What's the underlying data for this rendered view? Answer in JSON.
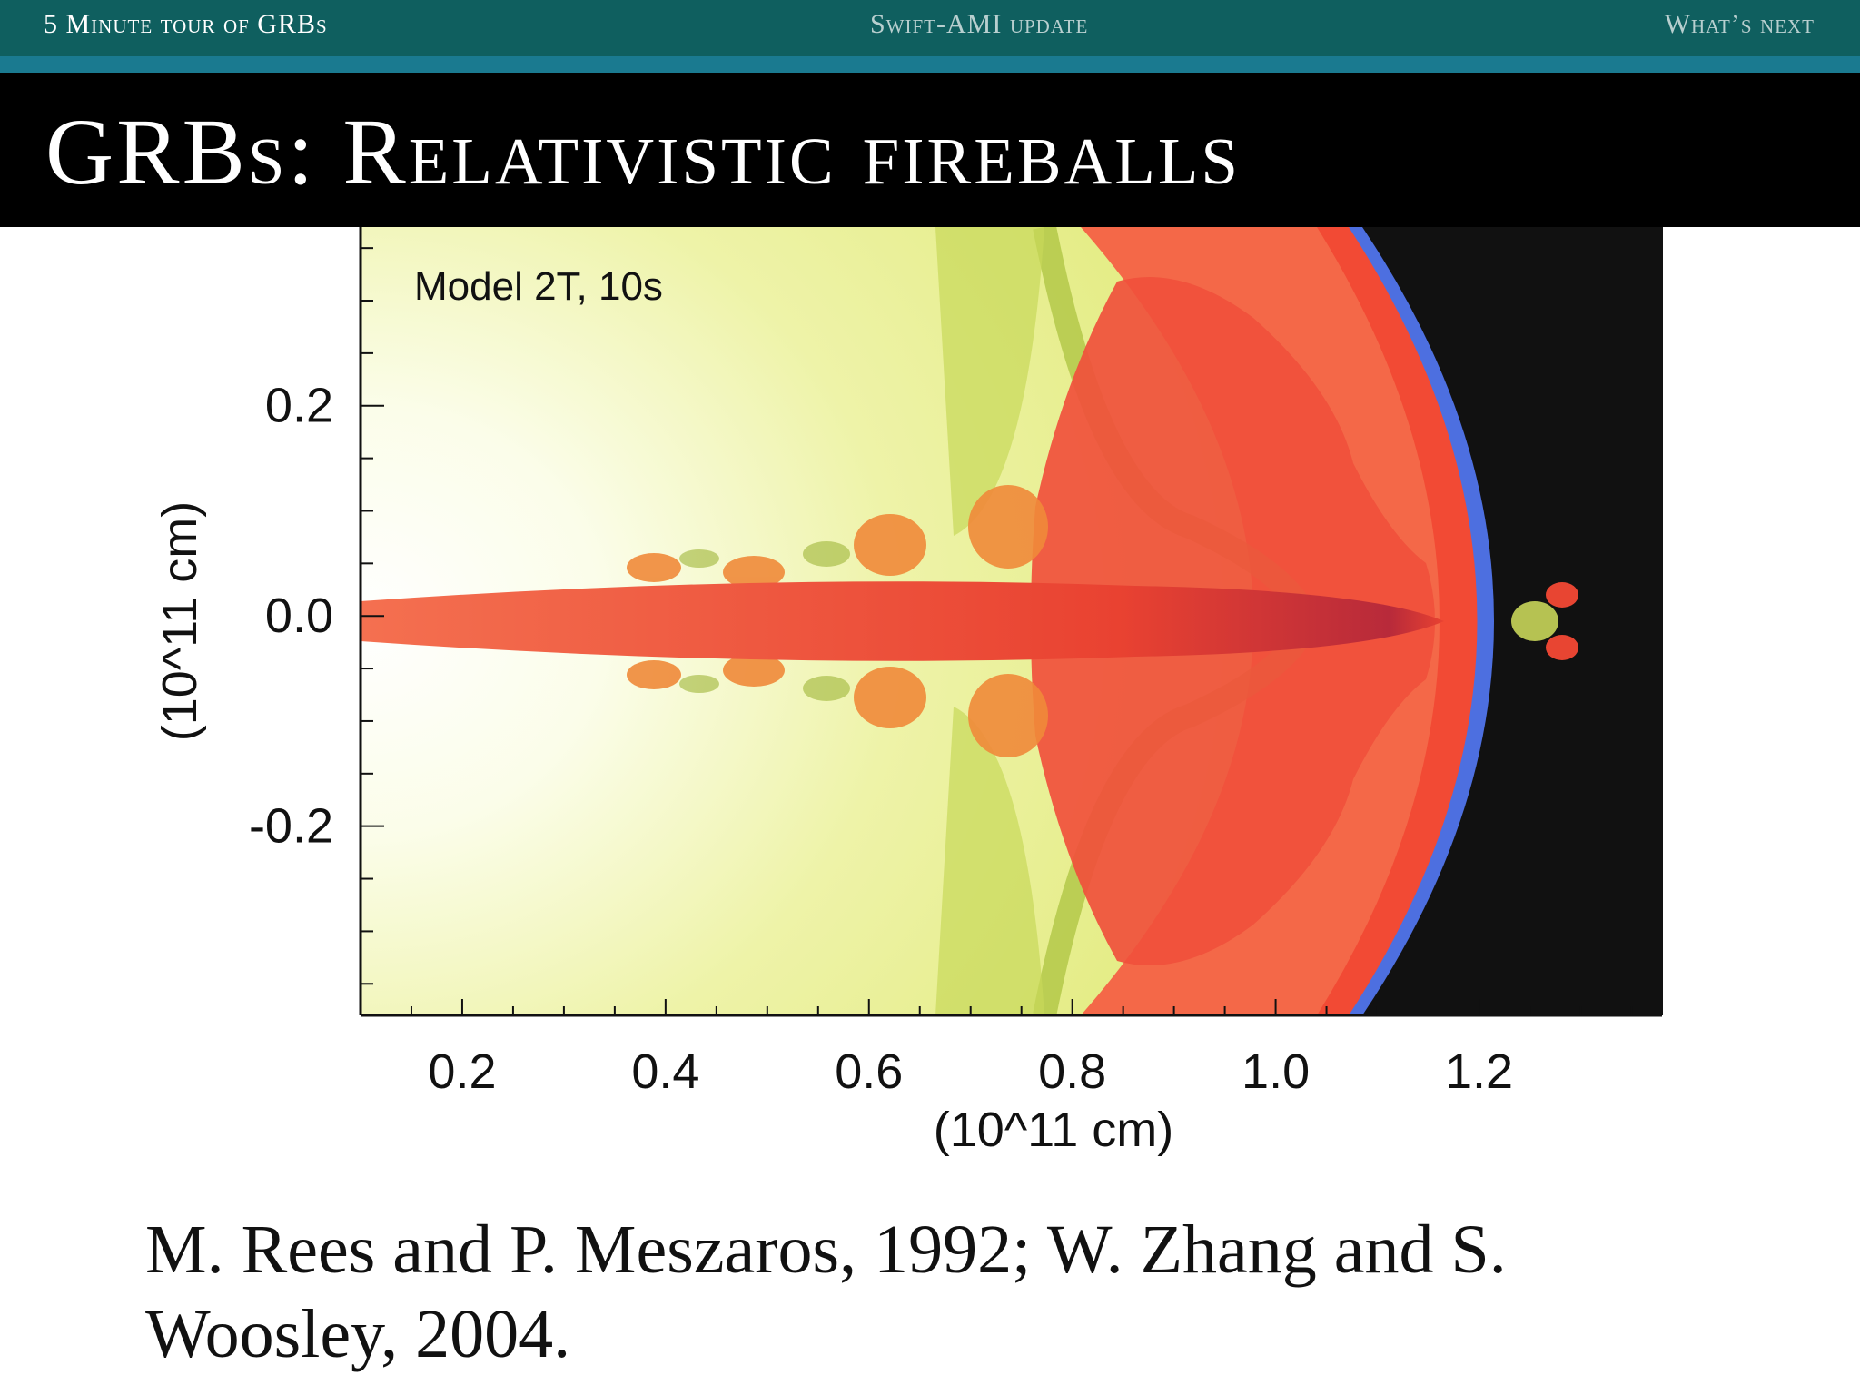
{
  "nav": {
    "item1": "5 Minute tour of GRBs",
    "item2": "Swift-AMI update",
    "item3": "What’s next"
  },
  "slide": {
    "title": "GRBs: Relativistic fireballs"
  },
  "figure": {
    "annotation": "Model 2T, 10s",
    "xlabel": "(10^11 cm)",
    "ylabel": "(10^11 cm)",
    "x_ticks": [
      "0.2",
      "0.4",
      "0.6",
      "0.8",
      "1.0",
      "1.2"
    ],
    "y_ticks": [
      "0.2",
      "0.0",
      "-0.2"
    ],
    "xlim": [
      0.1,
      1.38
    ],
    "ylim": [
      -0.38,
      0.37
    ],
    "colors": {
      "outer": "#f7fbd8",
      "shell_edge": "#4d6fe0",
      "background_outside": "#111111",
      "jet": "#ee4433"
    }
  },
  "citation": {
    "text": "M. Rees and P. Meszaros, 1992; W. Zhang and S. Woosley, 2004."
  }
}
